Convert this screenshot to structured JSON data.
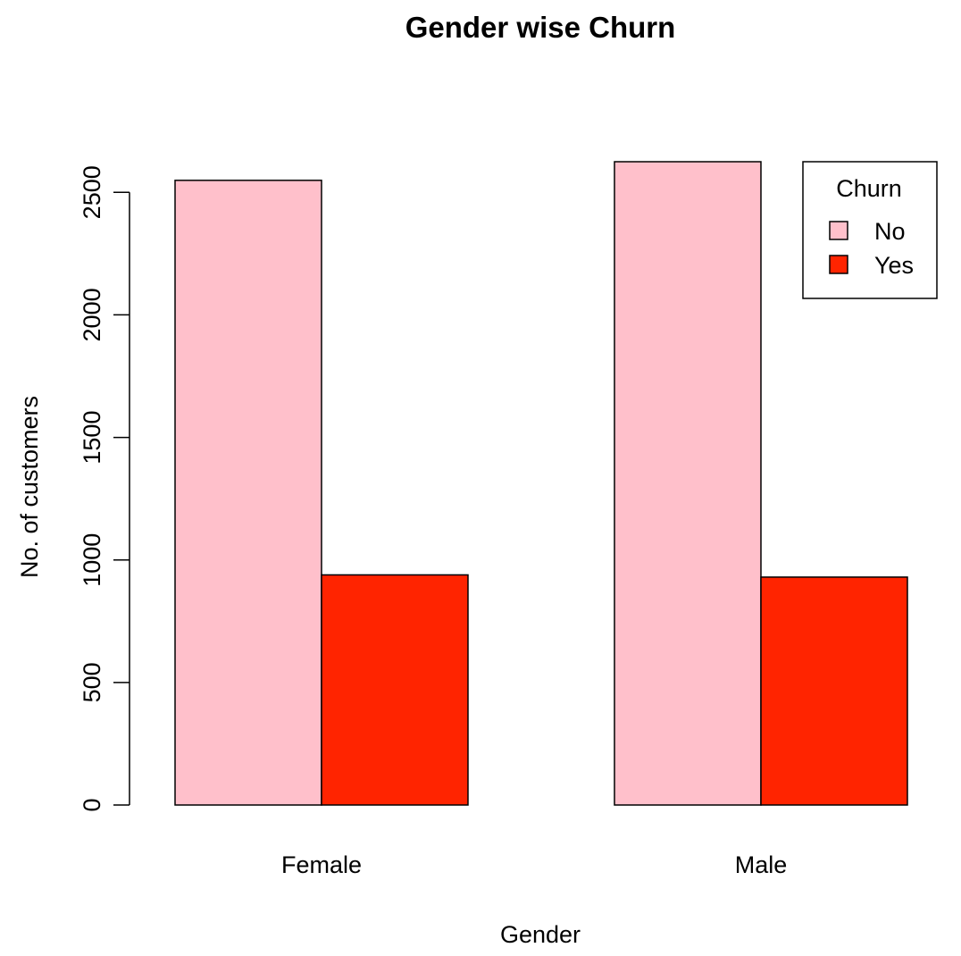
{
  "chart_data": {
    "type": "bar",
    "title": "Gender wise Churn",
    "xlabel": "Gender",
    "ylabel": "No. of customers",
    "categories": [
      "Female",
      "Male"
    ],
    "series": [
      {
        "name": "No",
        "values": [
          2549,
          2625
        ],
        "color": "#FFC0CB"
      },
      {
        "name": "Yes",
        "values": [
          939,
          930
        ],
        "color": "#FF2400"
      }
    ],
    "yticks": [
      0,
      500,
      1000,
      1500,
      2000,
      2500
    ],
    "ylim": [
      0,
      2625
    ],
    "legend": {
      "title": "Churn",
      "position": "top-right"
    },
    "grid": false
  }
}
